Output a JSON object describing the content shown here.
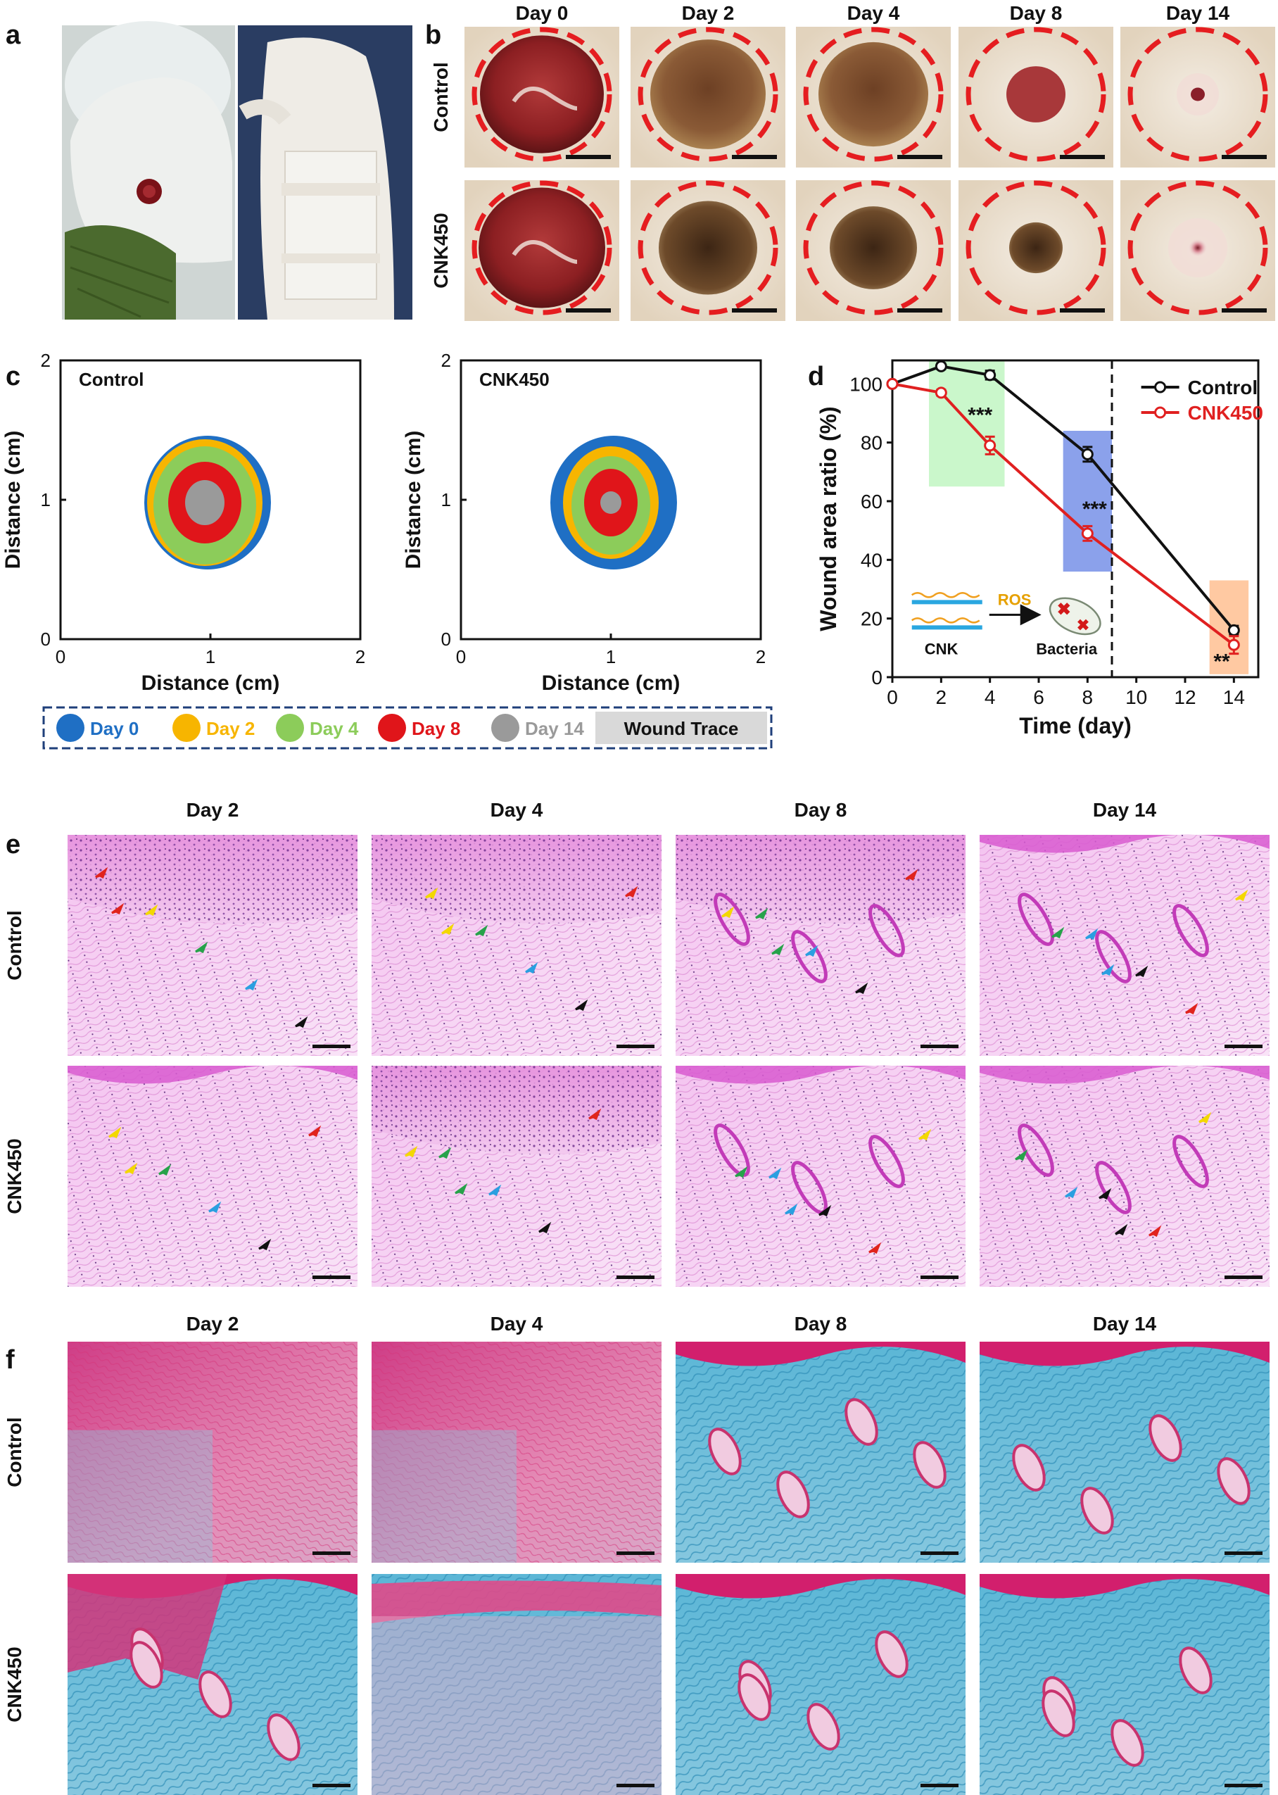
{
  "panel_letters": {
    "a": "a",
    "b": "b",
    "c": "c",
    "d": "d",
    "e": "e",
    "f": "f"
  },
  "panel_b": {
    "days": [
      "Day 0",
      "Day 2",
      "Day 4",
      "Day 8",
      "Day 14"
    ],
    "groups": [
      "Control",
      "CNK450"
    ]
  },
  "panel_c": {
    "left_title": "Control",
    "right_title": "CNK450",
    "xlabel": "Distance (cm)",
    "ylabel": "Distance (cm)",
    "ticks": [
      "0",
      "1",
      "2"
    ],
    "legend": [
      {
        "label": "Day 0",
        "color": "#1f6fc4"
      },
      {
        "label": "Day 2",
        "color": "#f7b500"
      },
      {
        "label": "Day 4",
        "color": "#8ccc5a"
      },
      {
        "label": "Day 8",
        "color": "#e0151a"
      },
      {
        "label": "Day 14",
        "color": "#9a9a9a"
      }
    ],
    "legend_trace": "Wound Trace"
  },
  "panel_e": {
    "days": [
      "Day 2",
      "Day 4",
      "Day 8",
      "Day 14"
    ],
    "groups": [
      "Control",
      "CNK450"
    ]
  },
  "panel_f": {
    "days": [
      "Day 2",
      "Day 4",
      "Day 8",
      "Day 14"
    ],
    "groups": [
      "Control",
      "CNK450"
    ]
  },
  "chart_data": {
    "type": "line",
    "x": [
      0,
      2,
      4,
      8,
      14
    ],
    "series": [
      {
        "name": "Control",
        "color": "#111111",
        "values": [
          100,
          106,
          103,
          76,
          16
        ],
        "errors": [
          0,
          1,
          1.5,
          2.5,
          1.5
        ]
      },
      {
        "name": "CNK450",
        "color": "#e02020",
        "values": [
          100,
          97,
          79,
          49,
          11
        ],
        "errors": [
          0,
          1,
          3,
          2.5,
          3
        ]
      }
    ],
    "xlabel": "Time (day)",
    "ylabel": "Wound area ratio (%)",
    "xlim": [
      0,
      15
    ],
    "ylim": [
      0,
      108
    ],
    "xticks": [
      "0",
      "2",
      "4",
      "6",
      "8",
      "10",
      "12",
      "14"
    ],
    "yticks": [
      "0",
      "20",
      "40",
      "60",
      "80",
      "100"
    ],
    "dashed_line_x": 9,
    "annotations": [
      "***",
      "***",
      "**"
    ],
    "inset": {
      "label_left": "CNK",
      "label_arrow": "ROS",
      "label_right": "Bacteria"
    },
    "legend_position": "top-right"
  }
}
